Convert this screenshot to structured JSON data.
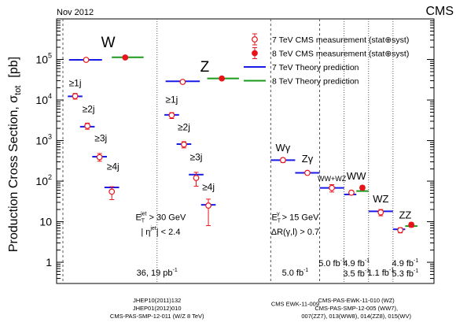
{
  "header": {
    "date": "Nov 2012",
    "experiment": "CMS"
  },
  "chart_data": {
    "type": "scatter",
    "title": "",
    "ylabel": "Production Cross Section, σ",
    "ylabel_sub": "tot",
    "ylabel_unit": "[pb]",
    "yscale": "log",
    "ylim": [
      0.3,
      1000000
    ],
    "y_ticks": [
      {
        "value": 1,
        "base": "1",
        "exp": ""
      },
      {
        "value": 10,
        "base": "10",
        "exp": ""
      },
      {
        "value": 100,
        "base": "10",
        "exp": "2"
      },
      {
        "value": 1000,
        "base": "10",
        "exp": "3"
      },
      {
        "value": 10000,
        "base": "10",
        "exp": "4"
      },
      {
        "value": 100000,
        "base": "10",
        "exp": "5"
      }
    ],
    "legend": {
      "position": "top-right",
      "entries": [
        {
          "label": "7 TeV CMS measurement (stat⊕syst)",
          "marker": "open-circle",
          "color": "#e8141c"
        },
        {
          "label": "8 TeV CMS measurement (stat⊕syst)",
          "marker": "filled-circle",
          "color": "#e8141c"
        },
        {
          "label": "7 TeV Theory prediction",
          "marker": "line",
          "color": "#1a1ae6"
        },
        {
          "label": "8 TeV Theory prediction",
          "marker": "line",
          "color": "#1a9a1a"
        }
      ]
    },
    "colors": {
      "meas": "#e8141c",
      "theory7": "#1a1ae6",
      "theory8": "#1a9a1a",
      "divider": "#555555"
    },
    "process_labels": [
      {
        "text": "W",
        "slot": 1.85,
        "value": 200000,
        "size": 19
      },
      {
        "text": "Z",
        "slot": 5.8,
        "value": 50000,
        "size": 19
      },
      {
        "text": "Wγ",
        "slot": 9.0,
        "value": 550,
        "size": 13
      },
      {
        "text": "Zγ",
        "slot": 10.0,
        "value": 290,
        "size": 13
      },
      {
        "text": "WW+WZ",
        "slot": 11.0,
        "value": 100,
        "size": 9
      },
      {
        "text": "WW",
        "slot": 12.0,
        "value": 110,
        "size": 13
      },
      {
        "text": "WZ",
        "slot": 13.0,
        "value": 30,
        "size": 13
      },
      {
        "text": "ZZ",
        "slot": 14.0,
        "value": 12,
        "size": 13
      }
    ],
    "jet_labels": [
      {
        "text": "≥1j",
        "slot": 0.5,
        "value": 22000
      },
      {
        "text": "≥2j",
        "slot": 1.05,
        "value": 5000
      },
      {
        "text": "≥3j",
        "slot": 1.55,
        "value": 950
      },
      {
        "text": "≥4j",
        "slot": 2.05,
        "value": 190
      },
      {
        "text": "≥1j",
        "slot": 4.45,
        "value": 8500
      },
      {
        "text": "≥2j",
        "slot": 4.95,
        "value": 1800
      },
      {
        "text": "≥3j",
        "slot": 5.45,
        "value": 330
      },
      {
        "text": "≥4j",
        "slot": 5.95,
        "value": 60
      }
    ],
    "measurements": [
      {
        "name": "W 7 TeV",
        "x": 0.95,
        "value": 98000,
        "err_lo": 0,
        "err_hi": 0,
        "energy": "7TeV"
      },
      {
        "name": "W 8 TeV",
        "x": 2.55,
        "value": 112000,
        "err_lo": 0,
        "err_hi": 0,
        "energy": "8TeV"
      },
      {
        "name": "W ≥1j",
        "x": 0.5,
        "value": 12500,
        "err_lo": 2000,
        "err_hi": 2000,
        "energy": "7TeV"
      },
      {
        "name": "W ≥2j",
        "x": 1.0,
        "value": 2300,
        "err_lo": 400,
        "err_hi": 400,
        "energy": "7TeV"
      },
      {
        "name": "W ≥3j",
        "x": 1.5,
        "value": 390,
        "err_lo": 80,
        "err_hi": 90,
        "energy": "7TeV"
      },
      {
        "name": "W ≥4j",
        "x": 2.0,
        "value": 55,
        "err_lo": 20,
        "err_hi": 18,
        "energy": "7TeV"
      },
      {
        "name": "Z 7 TeV",
        "x": 4.9,
        "value": 28000,
        "err_lo": 0,
        "err_hi": 0,
        "energy": "7TeV"
      },
      {
        "name": "Z 8 TeV",
        "x": 6.5,
        "value": 34000,
        "err_lo": 0,
        "err_hi": 0,
        "energy": "8TeV"
      },
      {
        "name": "Z ≥1j",
        "x": 4.45,
        "value": 4200,
        "err_lo": 700,
        "err_hi": 700,
        "energy": "7TeV"
      },
      {
        "name": "Z ≥2j",
        "x": 4.95,
        "value": 800,
        "err_lo": 140,
        "err_hi": 140,
        "energy": "7TeV"
      },
      {
        "name": "Z ≥3j",
        "x": 5.45,
        "value": 120,
        "err_lo": 45,
        "err_hi": 45,
        "energy": "7TeV"
      },
      {
        "name": "Z ≥4j",
        "x": 5.95,
        "value": 25,
        "err_lo": 17,
        "err_hi": 11,
        "energy": "7TeV"
      },
      {
        "name": "Wγ",
        "x": 9.0,
        "value": 330,
        "err_lo": 40,
        "err_hi": 40,
        "energy": "7TeV"
      },
      {
        "name": "Zγ",
        "x": 10.0,
        "value": 160,
        "err_lo": 15,
        "err_hi": 15,
        "energy": "7TeV"
      },
      {
        "name": "WW+WZ",
        "x": 11.0,
        "value": 68,
        "err_lo": 14,
        "err_hi": 14,
        "energy": "7TeV"
      },
      {
        "name": "WW 7 TeV",
        "x": 11.8,
        "value": 52,
        "err_lo": 6,
        "err_hi": 6,
        "energy": "7TeV"
      },
      {
        "name": "WW 8 TeV",
        "x": 12.25,
        "value": 69,
        "err_lo": 8,
        "err_hi": 8,
        "energy": "8TeV"
      },
      {
        "name": "WZ",
        "x": 13.0,
        "value": 17,
        "err_lo": 3,
        "err_hi": 3,
        "energy": "7TeV"
      },
      {
        "name": "ZZ 7 TeV",
        "x": 13.8,
        "value": 6.2,
        "err_lo": 0.9,
        "err_hi": 0.9,
        "energy": "7TeV"
      },
      {
        "name": "ZZ 8 TeV",
        "x": 14.25,
        "value": 8.4,
        "err_lo": 1.1,
        "err_hi": 1.1,
        "energy": "8TeV"
      }
    ],
    "theory": [
      {
        "x0": 0.25,
        "x1": 1.6,
        "value": 98000,
        "energy": "7TeV"
      },
      {
        "x0": 2.0,
        "x1": 3.3,
        "value": 113000,
        "energy": "8TeV"
      },
      {
        "x0": 0.2,
        "x1": 0.8,
        "value": 12300,
        "energy": "7TeV"
      },
      {
        "x0": 0.7,
        "x1": 1.3,
        "value": 2200,
        "energy": "7TeV"
      },
      {
        "x0": 1.2,
        "x1": 1.8,
        "value": 400,
        "energy": "7TeV"
      },
      {
        "x0": 1.7,
        "x1": 2.3,
        "value": 70,
        "energy": "7TeV"
      },
      {
        "x0": 4.2,
        "x1": 5.6,
        "value": 29000,
        "energy": "7TeV"
      },
      {
        "x0": 5.9,
        "x1": 7.2,
        "value": 34000,
        "energy": "8TeV"
      },
      {
        "x0": 4.15,
        "x1": 4.75,
        "value": 4300,
        "energy": "7TeV"
      },
      {
        "x0": 4.65,
        "x1": 5.25,
        "value": 820,
        "energy": "7TeV"
      },
      {
        "x0": 5.15,
        "x1": 5.75,
        "value": 145,
        "energy": "7TeV"
      },
      {
        "x0": 5.65,
        "x1": 6.25,
        "value": 26,
        "energy": "7TeV"
      },
      {
        "x0": 8.5,
        "x1": 9.5,
        "value": 330,
        "energy": "7TeV"
      },
      {
        "x0": 9.5,
        "x1": 10.5,
        "value": 160,
        "energy": "7TeV"
      },
      {
        "x0": 10.5,
        "x1": 11.5,
        "value": 68,
        "energy": "7TeV"
      },
      {
        "x0": 11.5,
        "x1": 12.0,
        "value": 47,
        "energy": "7TeV"
      },
      {
        "x0": 12.0,
        "x1": 12.5,
        "value": 57,
        "energy": "8TeV"
      },
      {
        "x0": 12.5,
        "x1": 13.5,
        "value": 18,
        "energy": "7TeV"
      },
      {
        "x0": 13.5,
        "x1": 14.0,
        "value": 6.5,
        "energy": "7TeV"
      },
      {
        "x0": 14.0,
        "x1": 14.5,
        "value": 7.8,
        "energy": "8TeV"
      }
    ],
    "annotations": [
      {
        "id": "jet-et",
        "base": "E",
        "sub": "T",
        "sup": "jet",
        "rest": " > 30 GeV",
        "slot": 4.0,
        "value": 11
      },
      {
        "id": "jet-eta",
        "text": "| η",
        "sup": "jet",
        "rest": "| < 2.4",
        "slot": 4.0,
        "value": 4.8
      },
      {
        "id": "gamma-et",
        "base": "E",
        "sub": "T",
        "sup": "γ",
        "rest": " > 15 GeV",
        "slot": 9.5,
        "value": 11
      },
      {
        "id": "gamma-dr",
        "text": "ΔR(γ,l) > 0.7",
        "slot": 9.5,
        "value": 4.8
      }
    ],
    "luminosity": [
      {
        "id": "lumi-w-z",
        "lines": [
          [
            "36, 19 pb",
            "-1"
          ]
        ],
        "slot": 3.85,
        "value": 0.47
      },
      {
        "id": "lumi-vgamma",
        "lines": [
          [
            "5.0 fb",
            "-1"
          ]
        ],
        "slot": 9.5,
        "value": 0.47
      },
      {
        "id": "lumi-wwwz",
        "lines": [
          [
            "5.0 fb",
            "-1"
          ]
        ],
        "slot": 11.0,
        "value": 0.8
      },
      {
        "id": "lumi-ww",
        "lines": [
          [
            "4.9 fb",
            "-1"
          ],
          [
            "3.5 fb",
            "-1"
          ]
        ],
        "slot": 12.0,
        "value": 0.8
      },
      {
        "id": "lumi-wz",
        "lines": [
          [
            "1.1 fb",
            "-1"
          ]
        ],
        "slot": 13.0,
        "value": 0.47
      },
      {
        "id": "lumi-zz",
        "lines": [
          [
            "4.9 fb",
            "-1"
          ],
          [
            "5.3 fb",
            "-1"
          ]
        ],
        "slot": 14.0,
        "value": 0.8
      }
    ],
    "dividers": [
      {
        "slot": 3.85,
        "style": "dotted"
      },
      {
        "slot": 8.5,
        "style": "dashed"
      },
      {
        "slot": 10.5,
        "style": "dashed"
      },
      {
        "slot": 11.5,
        "style": "dotted"
      },
      {
        "slot": 12.5,
        "style": "dotted"
      },
      {
        "slot": 13.5,
        "style": "dotted"
      }
    ],
    "references": [
      {
        "id": "ref-wz-1",
        "text": "JHEP10(2011)132",
        "slot": 3.85,
        "row": 0
      },
      {
        "id": "ref-wz-2",
        "text": "JHEP01(2012)010",
        "slot": 3.85,
        "row": 1
      },
      {
        "id": "ref-wz-3",
        "text": "CMS-PAS-SMP-12-011 (W/Z 8 TeV)",
        "slot": 3.85,
        "row": 2
      },
      {
        "id": "ref-vg",
        "text": "CMS EWK-11-009",
        "slot": 9.5,
        "row": 0.45
      },
      {
        "id": "ref-db-1",
        "text": "CMS-PAS-EWK-11-010 (WZ)",
        "slot": 12.0,
        "row": 0
      },
      {
        "id": "ref-db-2",
        "text": "CMS-PAS-SMP-12-005 (WW7),",
        "slot": 12.0,
        "row": 1
      },
      {
        "id": "ref-db-3",
        "text": "007(ZZ7), 013(WW8), 014(ZZ8), 015(WV)",
        "slot": 12.0,
        "row": 2
      }
    ]
  }
}
